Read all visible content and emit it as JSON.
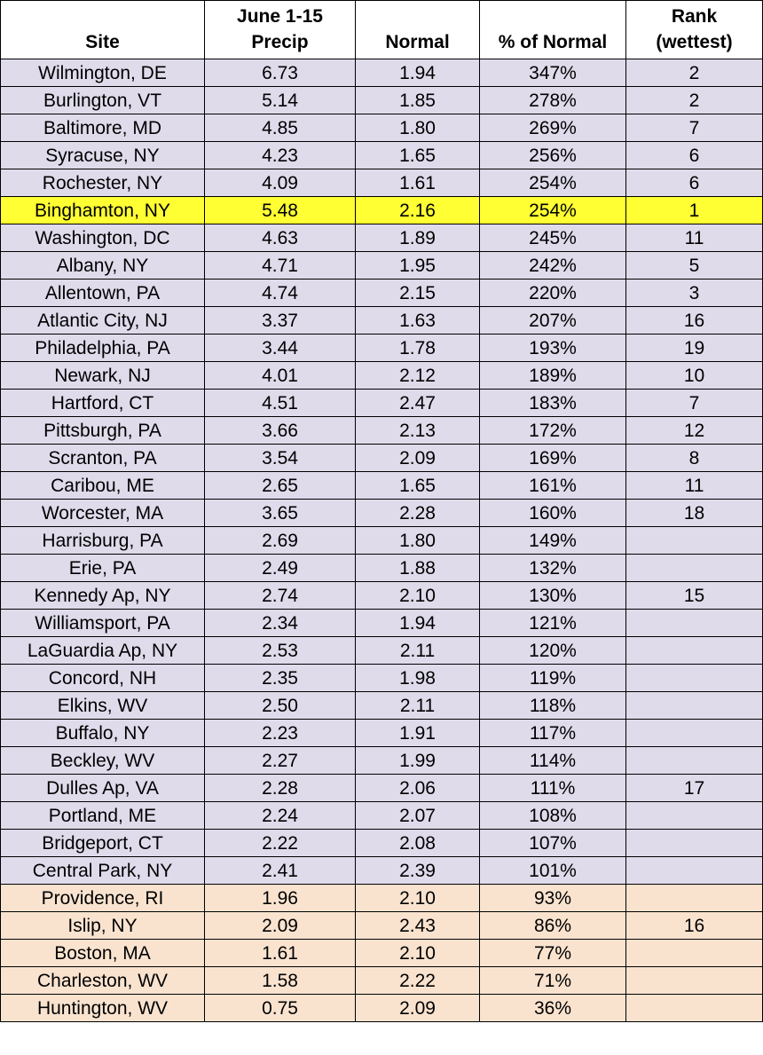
{
  "chart_data": {
    "type": "table",
    "columns": [
      "Site",
      "June 1-15 Precip",
      "Normal",
      "% of Normal",
      "Rank (wettest)"
    ],
    "header_lines": [
      [
        "Site"
      ],
      [
        "June 1-15",
        "Precip"
      ],
      [
        "Normal"
      ],
      [
        "% of Normal"
      ],
      [
        "Rank",
        "(wettest)"
      ]
    ],
    "highlight_row": "Binghamton, NY",
    "colors": {
      "above_normal": "#dfdbeb",
      "below_normal": "#f9e3cf",
      "highlight": "#ffff33"
    },
    "rows": [
      {
        "site": "Wilmington, DE",
        "precip": "6.73",
        "normal": "1.94",
        "pct": "347%",
        "rank": "2"
      },
      {
        "site": "Burlington, VT",
        "precip": "5.14",
        "normal": "1.85",
        "pct": "278%",
        "rank": "2"
      },
      {
        "site": "Baltimore, MD",
        "precip": "4.85",
        "normal": "1.80",
        "pct": "269%",
        "rank": "7"
      },
      {
        "site": "Syracuse, NY",
        "precip": "4.23",
        "normal": "1.65",
        "pct": "256%",
        "rank": "6"
      },
      {
        "site": "Rochester, NY",
        "precip": "4.09",
        "normal": "1.61",
        "pct": "254%",
        "rank": "6"
      },
      {
        "site": "Binghamton, NY",
        "precip": "5.48",
        "normal": "2.16",
        "pct": "254%",
        "rank": "1"
      },
      {
        "site": "Washington, DC",
        "precip": "4.63",
        "normal": "1.89",
        "pct": "245%",
        "rank": "11"
      },
      {
        "site": "Albany, NY",
        "precip": "4.71",
        "normal": "1.95",
        "pct": "242%",
        "rank": "5"
      },
      {
        "site": "Allentown, PA",
        "precip": "4.74",
        "normal": "2.15",
        "pct": "220%",
        "rank": "3"
      },
      {
        "site": "Atlantic City, NJ",
        "precip": "3.37",
        "normal": "1.63",
        "pct": "207%",
        "rank": "16"
      },
      {
        "site": "Philadelphia, PA",
        "precip": "3.44",
        "normal": "1.78",
        "pct": "193%",
        "rank": "19"
      },
      {
        "site": "Newark, NJ",
        "precip": "4.01",
        "normal": "2.12",
        "pct": "189%",
        "rank": "10"
      },
      {
        "site": "Hartford, CT",
        "precip": "4.51",
        "normal": "2.47",
        "pct": "183%",
        "rank": "7"
      },
      {
        "site": "Pittsburgh, PA",
        "precip": "3.66",
        "normal": "2.13",
        "pct": "172%",
        "rank": "12"
      },
      {
        "site": "Scranton, PA",
        "precip": "3.54",
        "normal": "2.09",
        "pct": "169%",
        "rank": "8"
      },
      {
        "site": "Caribou, ME",
        "precip": "2.65",
        "normal": "1.65",
        "pct": "161%",
        "rank": "11"
      },
      {
        "site": "Worcester, MA",
        "precip": "3.65",
        "normal": "2.28",
        "pct": "160%",
        "rank": "18"
      },
      {
        "site": "Harrisburg, PA",
        "precip": "2.69",
        "normal": "1.80",
        "pct": "149%",
        "rank": ""
      },
      {
        "site": "Erie, PA",
        "precip": "2.49",
        "normal": "1.88",
        "pct": "132%",
        "rank": ""
      },
      {
        "site": "Kennedy Ap, NY",
        "precip": "2.74",
        "normal": "2.10",
        "pct": "130%",
        "rank": "15"
      },
      {
        "site": "Williamsport, PA",
        "precip": "2.34",
        "normal": "1.94",
        "pct": "121%",
        "rank": ""
      },
      {
        "site": "LaGuardia Ap, NY",
        "precip": "2.53",
        "normal": "2.11",
        "pct": "120%",
        "rank": ""
      },
      {
        "site": "Concord, NH",
        "precip": "2.35",
        "normal": "1.98",
        "pct": "119%",
        "rank": ""
      },
      {
        "site": "Elkins, WV",
        "precip": "2.50",
        "normal": "2.11",
        "pct": "118%",
        "rank": ""
      },
      {
        "site": "Buffalo, NY",
        "precip": "2.23",
        "normal": "1.91",
        "pct": "117%",
        "rank": ""
      },
      {
        "site": "Beckley, WV",
        "precip": "2.27",
        "normal": "1.99",
        "pct": "114%",
        "rank": ""
      },
      {
        "site": "Dulles Ap, VA",
        "precip": "2.28",
        "normal": "2.06",
        "pct": "111%",
        "rank": "17"
      },
      {
        "site": "Portland, ME",
        "precip": "2.24",
        "normal": "2.07",
        "pct": "108%",
        "rank": ""
      },
      {
        "site": "Bridgeport, CT",
        "precip": "2.22",
        "normal": "2.08",
        "pct": "107%",
        "rank": ""
      },
      {
        "site": "Central Park, NY",
        "precip": "2.41",
        "normal": "2.39",
        "pct": "101%",
        "rank": ""
      },
      {
        "site": "Providence, RI",
        "precip": "1.96",
        "normal": "2.10",
        "pct": "93%",
        "rank": ""
      },
      {
        "site": "Islip, NY",
        "precip": "2.09",
        "normal": "2.43",
        "pct": "86%",
        "rank": "16"
      },
      {
        "site": "Boston, MA",
        "precip": "1.61",
        "normal": "2.10",
        "pct": "77%",
        "rank": ""
      },
      {
        "site": "Charleston, WV",
        "precip": "1.58",
        "normal": "2.22",
        "pct": "71%",
        "rank": ""
      },
      {
        "site": "Huntington, WV",
        "precip": "0.75",
        "normal": "2.09",
        "pct": "36%",
        "rank": ""
      }
    ]
  }
}
